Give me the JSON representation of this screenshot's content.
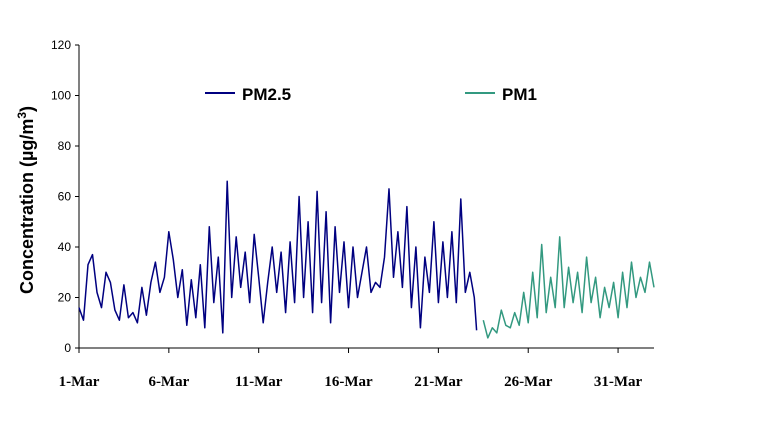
{
  "chart_data": {
    "type": "line",
    "ylabel": "Concentration (µg/m",
    "ylabel_superscript": "3",
    "ylabel_suffix": ")",
    "ylim": [
      0,
      120
    ],
    "yticks": [
      0,
      20,
      40,
      60,
      80,
      100,
      120
    ],
    "xlim": [
      "2010-03-01",
      "2010-04-02"
    ],
    "xtick_labels": [
      "1-Mar",
      "6-Mar",
      "11-Mar",
      "16-Mar",
      "21-Mar",
      "26-Mar",
      "31-Mar"
    ],
    "xtick_dates": [
      "2010-03-01",
      "2010-03-06",
      "2010-03-11",
      "2010-03-16",
      "2010-03-21",
      "2010-03-26",
      "2010-03-31"
    ],
    "grid": false,
    "legend_placement": "top",
    "series": [
      {
        "name": "PM2.5",
        "color": "#000080",
        "points": [
          [
            "2010-03-01 00:00",
            16
          ],
          [
            "2010-03-01 06:00",
            11
          ],
          [
            "2010-03-01 12:00",
            33
          ],
          [
            "2010-03-01 18:00",
            37
          ],
          [
            "2010-03-02 00:00",
            22
          ],
          [
            "2010-03-02 06:00",
            16
          ],
          [
            "2010-03-02 12:00",
            30
          ],
          [
            "2010-03-02 18:00",
            26
          ],
          [
            "2010-03-03 00:00",
            15
          ],
          [
            "2010-03-03 06:00",
            11
          ],
          [
            "2010-03-03 12:00",
            25
          ],
          [
            "2010-03-03 18:00",
            12
          ],
          [
            "2010-03-04 00:00",
            14
          ],
          [
            "2010-03-04 06:00",
            10
          ],
          [
            "2010-03-04 12:00",
            24
          ],
          [
            "2010-03-04 18:00",
            13
          ],
          [
            "2010-03-05 00:00",
            26
          ],
          [
            "2010-03-05 06:00",
            34
          ],
          [
            "2010-03-05 12:00",
            22
          ],
          [
            "2010-03-05 18:00",
            28
          ],
          [
            "2010-03-06 00:00",
            46
          ],
          [
            "2010-03-06 06:00",
            35
          ],
          [
            "2010-03-06 12:00",
            20
          ],
          [
            "2010-03-06 18:00",
            31
          ],
          [
            "2010-03-07 00:00",
            9
          ],
          [
            "2010-03-07 06:00",
            27
          ],
          [
            "2010-03-07 12:00",
            12
          ],
          [
            "2010-03-07 18:00",
            33
          ],
          [
            "2010-03-08 00:00",
            8
          ],
          [
            "2010-03-08 06:00",
            48
          ],
          [
            "2010-03-08 12:00",
            18
          ],
          [
            "2010-03-08 18:00",
            36
          ],
          [
            "2010-03-09 00:00",
            6
          ],
          [
            "2010-03-09 06:00",
            66
          ],
          [
            "2010-03-09 12:00",
            20
          ],
          [
            "2010-03-09 18:00",
            44
          ],
          [
            "2010-03-10 00:00",
            24
          ],
          [
            "2010-03-10 06:00",
            38
          ],
          [
            "2010-03-10 12:00",
            18
          ],
          [
            "2010-03-10 18:00",
            45
          ],
          [
            "2010-03-11 00:00",
            28
          ],
          [
            "2010-03-11 06:00",
            10
          ],
          [
            "2010-03-11 12:00",
            26
          ],
          [
            "2010-03-11 18:00",
            40
          ],
          [
            "2010-03-12 00:00",
            22
          ],
          [
            "2010-03-12 06:00",
            38
          ],
          [
            "2010-03-12 12:00",
            14
          ],
          [
            "2010-03-12 18:00",
            42
          ],
          [
            "2010-03-13 00:00",
            18
          ],
          [
            "2010-03-13 06:00",
            60
          ],
          [
            "2010-03-13 12:00",
            20
          ],
          [
            "2010-03-13 18:00",
            50
          ],
          [
            "2010-03-14 00:00",
            14
          ],
          [
            "2010-03-14 06:00",
            62
          ],
          [
            "2010-03-14 12:00",
            18
          ],
          [
            "2010-03-14 18:00",
            54
          ],
          [
            "2010-03-15 00:00",
            10
          ],
          [
            "2010-03-15 06:00",
            48
          ],
          [
            "2010-03-15 12:00",
            22
          ],
          [
            "2010-03-15 18:00",
            42
          ],
          [
            "2010-03-16 00:00",
            16
          ],
          [
            "2010-03-16 06:00",
            40
          ],
          [
            "2010-03-16 12:00",
            20
          ],
          [
            "2010-03-16 18:00",
            30
          ],
          [
            "2010-03-17 00:00",
            40
          ],
          [
            "2010-03-17 06:00",
            22
          ],
          [
            "2010-03-17 12:00",
            26
          ],
          [
            "2010-03-17 18:00",
            24
          ],
          [
            "2010-03-18 00:00",
            36
          ],
          [
            "2010-03-18 06:00",
            63
          ],
          [
            "2010-03-18 12:00",
            28
          ],
          [
            "2010-03-18 18:00",
            46
          ],
          [
            "2010-03-19 00:00",
            24
          ],
          [
            "2010-03-19 06:00",
            56
          ],
          [
            "2010-03-19 12:00",
            16
          ],
          [
            "2010-03-19 18:00",
            40
          ],
          [
            "2010-03-20 00:00",
            8
          ],
          [
            "2010-03-20 06:00",
            36
          ],
          [
            "2010-03-20 12:00",
            22
          ],
          [
            "2010-03-20 18:00",
            50
          ],
          [
            "2010-03-21 00:00",
            18
          ],
          [
            "2010-03-21 06:00",
            42
          ],
          [
            "2010-03-21 12:00",
            20
          ],
          [
            "2010-03-21 18:00",
            46
          ],
          [
            "2010-03-22 00:00",
            18
          ],
          [
            "2010-03-22 06:00",
            59
          ],
          [
            "2010-03-22 12:00",
            22
          ],
          [
            "2010-03-22 18:00",
            30
          ],
          [
            "2010-03-23 00:00",
            20
          ],
          [
            "2010-03-23 03:00",
            7
          ]
        ]
      },
      {
        "name": "PM1",
        "color": "#339980",
        "points": [
          [
            "2010-03-23 12:00",
            11
          ],
          [
            "2010-03-23 18:00",
            4
          ],
          [
            "2010-03-24 00:00",
            8
          ],
          [
            "2010-03-24 06:00",
            6
          ],
          [
            "2010-03-24 12:00",
            15
          ],
          [
            "2010-03-24 18:00",
            9
          ],
          [
            "2010-03-25 00:00",
            8
          ],
          [
            "2010-03-25 06:00",
            14
          ],
          [
            "2010-03-25 12:00",
            9
          ],
          [
            "2010-03-25 18:00",
            22
          ],
          [
            "2010-03-26 00:00",
            10
          ],
          [
            "2010-03-26 06:00",
            30
          ],
          [
            "2010-03-26 12:00",
            12
          ],
          [
            "2010-03-26 18:00",
            41
          ],
          [
            "2010-03-27 00:00",
            14
          ],
          [
            "2010-03-27 06:00",
            28
          ],
          [
            "2010-03-27 12:00",
            16
          ],
          [
            "2010-03-27 18:00",
            44
          ],
          [
            "2010-03-28 00:00",
            16
          ],
          [
            "2010-03-28 06:00",
            32
          ],
          [
            "2010-03-28 12:00",
            18
          ],
          [
            "2010-03-28 18:00",
            30
          ],
          [
            "2010-03-29 00:00",
            14
          ],
          [
            "2010-03-29 06:00",
            36
          ],
          [
            "2010-03-29 12:00",
            18
          ],
          [
            "2010-03-29 18:00",
            28
          ],
          [
            "2010-03-30 00:00",
            12
          ],
          [
            "2010-03-30 06:00",
            24
          ],
          [
            "2010-03-30 12:00",
            16
          ],
          [
            "2010-03-30 18:00",
            26
          ],
          [
            "2010-03-31 00:00",
            12
          ],
          [
            "2010-03-31 06:00",
            30
          ],
          [
            "2010-03-31 12:00",
            16
          ],
          [
            "2010-03-31 18:00",
            34
          ],
          [
            "2010-04-01 00:00",
            20
          ],
          [
            "2010-04-01 06:00",
            28
          ],
          [
            "2010-04-01 12:00",
            22
          ],
          [
            "2010-04-01 18:00",
            34
          ],
          [
            "2010-04-02 00:00",
            24
          ]
        ]
      }
    ]
  }
}
